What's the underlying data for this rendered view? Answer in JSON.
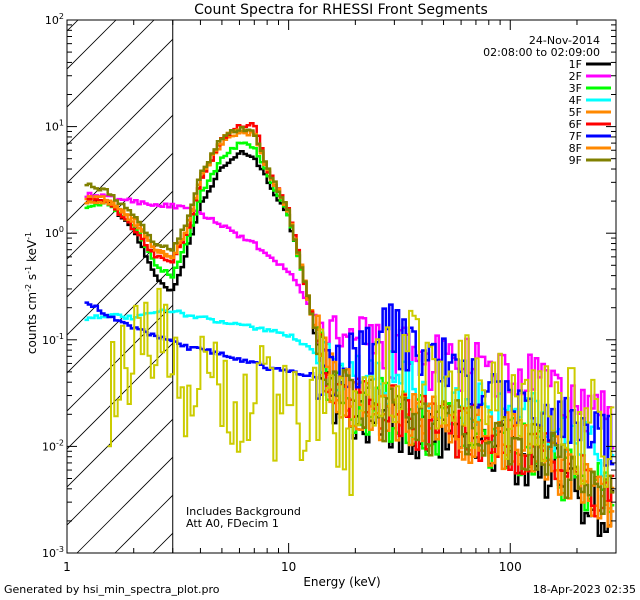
{
  "chart_data": {
    "type": "line",
    "title": "Count Spectra for RHESSI Front Segments",
    "xlabel": "Energy (keV)",
    "ylabel_base": "counts cm",
    "ylabel_exp1": "-2",
    "ylabel_mid": " s",
    "ylabel_exp2": "-1",
    "ylabel_end": " keV",
    "ylabel_exp3": "-1",
    "xscale": "log",
    "yscale": "log",
    "xlim": [
      1,
      300
    ],
    "ylim": [
      0.001,
      100
    ],
    "x_ticks": [
      {
        "value": 10,
        "label": "10"
      },
      {
        "value": 100,
        "label": "100"
      }
    ],
    "x_tick_one": {
      "value": 1,
      "label": "1"
    },
    "y_ticks": [
      {
        "value": 0.001,
        "base": "10",
        "exp": "-3"
      },
      {
        "value": 0.01,
        "base": "10",
        "exp": "-2"
      },
      {
        "value": 0.1,
        "base": "10",
        "exp": "-1"
      },
      {
        "value": 1,
        "base": "10",
        "exp": "0"
      },
      {
        "value": 10,
        "base": "10",
        "exp": "1"
      },
      {
        "value": 100,
        "base": "10",
        "exp": "2"
      }
    ],
    "hatched_region_max_keV": 3,
    "date": "24-Nov-2014",
    "time_range": "02:08:00 to 02:09:00",
    "annotations": [
      "Includes Background",
      "Att A0, FDecim 1"
    ],
    "series": [
      {
        "name": "1F",
        "color": "#000000",
        "points": [
          [
            1.2,
            2.0
          ],
          [
            1.5,
            2.0
          ],
          [
            2,
            1.1
          ],
          [
            2.5,
            0.4
          ],
          [
            3,
            0.28
          ],
          [
            3.5,
            0.7
          ],
          [
            4,
            1.8
          ],
          [
            5,
            4.2
          ],
          [
            6,
            5.8
          ],
          [
            7,
            5.2
          ],
          [
            8,
            3.2
          ],
          [
            10,
            1.4
          ],
          [
            12,
            0.3
          ],
          [
            14,
            0.06
          ],
          [
            16,
            0.03
          ],
          [
            20,
            0.018
          ],
          [
            25,
            0.02
          ],
          [
            30,
            0.017
          ],
          [
            40,
            0.012
          ],
          [
            60,
            0.011
          ],
          [
            80,
            0.009
          ],
          [
            100,
            0.0085
          ],
          [
            150,
            0.006
          ],
          [
            200,
            0.004
          ],
          [
            260,
            0.0025
          ],
          [
            300,
            0.0022
          ]
        ]
      },
      {
        "name": "2F",
        "color": "#ff00ff",
        "points": [
          [
            1.2,
            2.3
          ],
          [
            1.5,
            2.2
          ],
          [
            2,
            2.0
          ],
          [
            2.5,
            1.85
          ],
          [
            3,
            1.8
          ],
          [
            3.5,
            1.7
          ],
          [
            4,
            1.5
          ],
          [
            5,
            1.2
          ],
          [
            6,
            0.95
          ],
          [
            7,
            0.8
          ],
          [
            8,
            0.6
          ],
          [
            10,
            0.45
          ],
          [
            12,
            0.23
          ],
          [
            14,
            0.13
          ],
          [
            16,
            0.1
          ],
          [
            20,
            0.09
          ],
          [
            25,
            0.085
          ],
          [
            30,
            0.08
          ],
          [
            40,
            0.06
          ],
          [
            50,
            0.062
          ],
          [
            70,
            0.052
          ],
          [
            100,
            0.045
          ],
          [
            150,
            0.035
          ],
          [
            200,
            0.024
          ],
          [
            260,
            0.02
          ],
          [
            300,
            0.015
          ]
        ]
      },
      {
        "name": "3F",
        "color": "#00ff00",
        "points": [
          [
            1.2,
            1.8
          ],
          [
            1.5,
            1.9
          ],
          [
            2,
            1.2
          ],
          [
            2.5,
            0.5
          ],
          [
            3,
            0.4
          ],
          [
            3.5,
            0.85
          ],
          [
            4,
            2.3
          ],
          [
            5,
            5.0
          ],
          [
            6,
            7.0
          ],
          [
            7,
            6.5
          ],
          [
            8,
            3.5
          ],
          [
            10,
            1.5
          ],
          [
            12,
            0.3
          ],
          [
            14,
            0.07
          ],
          [
            16,
            0.035
          ],
          [
            20,
            0.025
          ],
          [
            25,
            0.024
          ],
          [
            30,
            0.02
          ],
          [
            40,
            0.016
          ],
          [
            60,
            0.013
          ],
          [
            80,
            0.011
          ],
          [
            100,
            0.01
          ],
          [
            150,
            0.007
          ],
          [
            200,
            0.005
          ],
          [
            260,
            0.004
          ],
          [
            300,
            0.0035
          ]
        ]
      },
      {
        "name": "4F",
        "color": "#00ffff",
        "points": [
          [
            1.2,
            0.16
          ],
          [
            1.5,
            0.17
          ],
          [
            2,
            0.16
          ],
          [
            2.5,
            0.18
          ],
          [
            3,
            0.19
          ],
          [
            3.5,
            0.17
          ],
          [
            4,
            0.16
          ],
          [
            5,
            0.15
          ],
          [
            6,
            0.14
          ],
          [
            7,
            0.13
          ],
          [
            8,
            0.125
          ],
          [
            10,
            0.11
          ],
          [
            12,
            0.09
          ],
          [
            14,
            0.07
          ],
          [
            16,
            0.06
          ],
          [
            20,
            0.05
          ],
          [
            25,
            0.045
          ],
          [
            30,
            0.04
          ],
          [
            40,
            0.03
          ],
          [
            60,
            0.025
          ],
          [
            80,
            0.022
          ],
          [
            100,
            0.02
          ],
          [
            150,
            0.015
          ],
          [
            200,
            0.01
          ],
          [
            260,
            0.009
          ],
          [
            300,
            0.008
          ]
        ]
      },
      {
        "name": "5F",
        "color": "#ff8800",
        "points": [
          [
            1.2,
            2.2
          ],
          [
            1.5,
            2.1
          ],
          [
            2,
            1.4
          ],
          [
            2.5,
            0.7
          ],
          [
            3,
            0.6
          ],
          [
            3.5,
            1.1
          ],
          [
            4,
            3.1
          ],
          [
            5,
            7.0
          ],
          [
            6,
            9.0
          ],
          [
            7,
            8.5
          ],
          [
            8,
            4.0
          ],
          [
            10,
            1.6
          ],
          [
            12,
            0.32
          ],
          [
            14,
            0.07
          ],
          [
            16,
            0.035
          ],
          [
            20,
            0.025
          ],
          [
            25,
            0.02
          ],
          [
            30,
            0.02
          ],
          [
            40,
            0.016
          ],
          [
            60,
            0.014
          ],
          [
            80,
            0.012
          ],
          [
            100,
            0.011
          ],
          [
            150,
            0.008
          ],
          [
            200,
            0.005
          ],
          [
            260,
            0.0035
          ],
          [
            300,
            0.003
          ]
        ]
      },
      {
        "name": "6F",
        "color": "#ff0000",
        "points": [
          [
            1.2,
            2.0
          ],
          [
            1.5,
            2.0
          ],
          [
            2,
            1.1
          ],
          [
            2.5,
            0.6
          ],
          [
            3,
            0.55
          ],
          [
            3.5,
            1.05
          ],
          [
            4,
            3.0
          ],
          [
            5,
            7.5
          ],
          [
            6,
            10.0
          ],
          [
            7,
            11.0
          ],
          [
            8,
            4.0
          ],
          [
            10,
            1.7
          ],
          [
            12,
            0.3
          ],
          [
            14,
            0.07
          ],
          [
            16,
            0.035
          ],
          [
            20,
            0.025
          ],
          [
            25,
            0.022
          ],
          [
            30,
            0.02
          ],
          [
            40,
            0.016
          ],
          [
            60,
            0.014
          ],
          [
            80,
            0.012
          ],
          [
            100,
            0.011
          ],
          [
            150,
            0.008
          ],
          [
            200,
            0.005
          ],
          [
            260,
            0.0035
          ],
          [
            300,
            0.003
          ]
        ]
      },
      {
        "name": "7F",
        "color": "#0000ff",
        "points": [
          [
            1.2,
            0.24
          ],
          [
            1.5,
            0.17
          ],
          [
            2,
            0.13
          ],
          [
            2.5,
            0.11
          ],
          [
            3,
            0.1
          ],
          [
            3.5,
            0.085
          ],
          [
            4,
            0.08
          ],
          [
            5,
            0.075
          ],
          [
            6,
            0.065
          ],
          [
            7,
            0.06
          ],
          [
            8,
            0.055
          ],
          [
            10,
            0.05
          ],
          [
            12,
            0.048
          ],
          [
            14,
            0.045
          ],
          [
            16,
            0.05
          ],
          [
            18,
            0.06
          ],
          [
            20,
            0.065
          ],
          [
            25,
            0.09
          ],
          [
            28,
            0.13
          ],
          [
            30,
            0.11
          ],
          [
            35,
            0.09
          ],
          [
            40,
            0.07
          ],
          [
            50,
            0.06
          ],
          [
            70,
            0.04
          ],
          [
            100,
            0.025
          ],
          [
            150,
            0.02
          ],
          [
            200,
            0.014
          ],
          [
            260,
            0.012
          ],
          [
            300,
            0.011
          ]
        ]
      },
      {
        "name": "8F",
        "color": "#ff8800",
        "points": [
          [
            1.2,
            2.0
          ],
          [
            1.5,
            2.0
          ],
          [
            2,
            1.3
          ],
          [
            2.5,
            0.7
          ],
          [
            3,
            0.6
          ],
          [
            3.5,
            1.15
          ],
          [
            4,
            3.3
          ],
          [
            5,
            7.8
          ],
          [
            6,
            9.5
          ],
          [
            7,
            9.0
          ],
          [
            8,
            4.0
          ],
          [
            10,
            1.6
          ],
          [
            12,
            0.3
          ],
          [
            14,
            0.07
          ],
          [
            16,
            0.035
          ],
          [
            20,
            0.025
          ],
          [
            25,
            0.022
          ],
          [
            30,
            0.02
          ],
          [
            40,
            0.016
          ],
          [
            60,
            0.014
          ],
          [
            80,
            0.012
          ],
          [
            100,
            0.011
          ],
          [
            150,
            0.008
          ],
          [
            200,
            0.005
          ],
          [
            260,
            0.0035
          ],
          [
            300,
            0.003
          ]
        ]
      },
      {
        "name": "9F",
        "color": "#808000",
        "points": [
          [
            1.2,
            3.0
          ],
          [
            1.5,
            2.5
          ],
          [
            2,
            1.5
          ],
          [
            2.5,
            0.8
          ],
          [
            3,
            0.7
          ],
          [
            3.5,
            1.3
          ],
          [
            4,
            3.5
          ],
          [
            5,
            8.0
          ],
          [
            6,
            9.5
          ],
          [
            7,
            9.0
          ],
          [
            8,
            4.2
          ],
          [
            10,
            1.6
          ],
          [
            12,
            0.3
          ],
          [
            14,
            0.07
          ],
          [
            16,
            0.035
          ],
          [
            20,
            0.025
          ],
          [
            25,
            0.022
          ],
          [
            30,
            0.02
          ],
          [
            40,
            0.016
          ],
          [
            60,
            0.014
          ],
          [
            80,
            0.012
          ],
          [
            100,
            0.011
          ],
          [
            150,
            0.008
          ],
          [
            200,
            0.005
          ],
          [
            260,
            0.004
          ],
          [
            300,
            0.0035
          ]
        ]
      },
      {
        "name": "Background",
        "legend": false,
        "color": "#cccc00",
        "points": [
          [
            1.5,
            0.03
          ],
          [
            2,
            0.1
          ],
          [
            2.5,
            0.12
          ],
          [
            3,
            0.08
          ],
          [
            3.5,
            0.02
          ],
          [
            4,
            0.05
          ],
          [
            5,
            0.03
          ],
          [
            6,
            0.02
          ],
          [
            7,
            0.04
          ],
          [
            8,
            0.02
          ],
          [
            10,
            0.03
          ],
          [
            12,
            0.015
          ],
          [
            14,
            0.04
          ],
          [
            16,
            0.02
          ],
          [
            20,
            0.01
          ],
          [
            25,
            0.03
          ],
          [
            28,
            0.05
          ],
          [
            30,
            0.02
          ],
          [
            35,
            0.08
          ],
          [
            40,
            0.04
          ],
          [
            50,
            0.05
          ],
          [
            70,
            0.03
          ],
          [
            100,
            0.02
          ],
          [
            150,
            0.025
          ],
          [
            200,
            0.015
          ],
          [
            260,
            0.012
          ],
          [
            300,
            0.01
          ]
        ]
      }
    ]
  },
  "footer": {
    "generated_by": "Generated by hsi_min_spectra_plot.pro",
    "timestamp": "18-Apr-2023 02:35"
  }
}
